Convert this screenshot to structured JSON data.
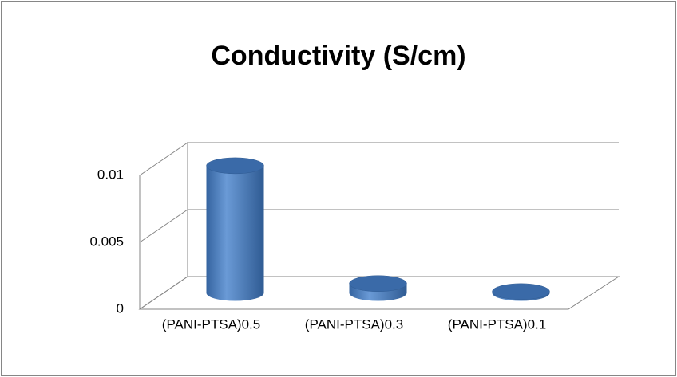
{
  "chart_data": {
    "type": "bar3d",
    "title": "Conductivity (S/cm)",
    "categories": [
      "(PANI-PTSA)0.5",
      "(PANI-PTSA)0.3",
      "(PANI-PTSA)0.1"
    ],
    "values": [
      0.0095,
      0.0007,
      0.0001
    ],
    "color": "#4f81bd",
    "ylim": [
      0,
      0.01
    ],
    "yticks": [
      0,
      0.005,
      0.01
    ],
    "grid": true
  }
}
